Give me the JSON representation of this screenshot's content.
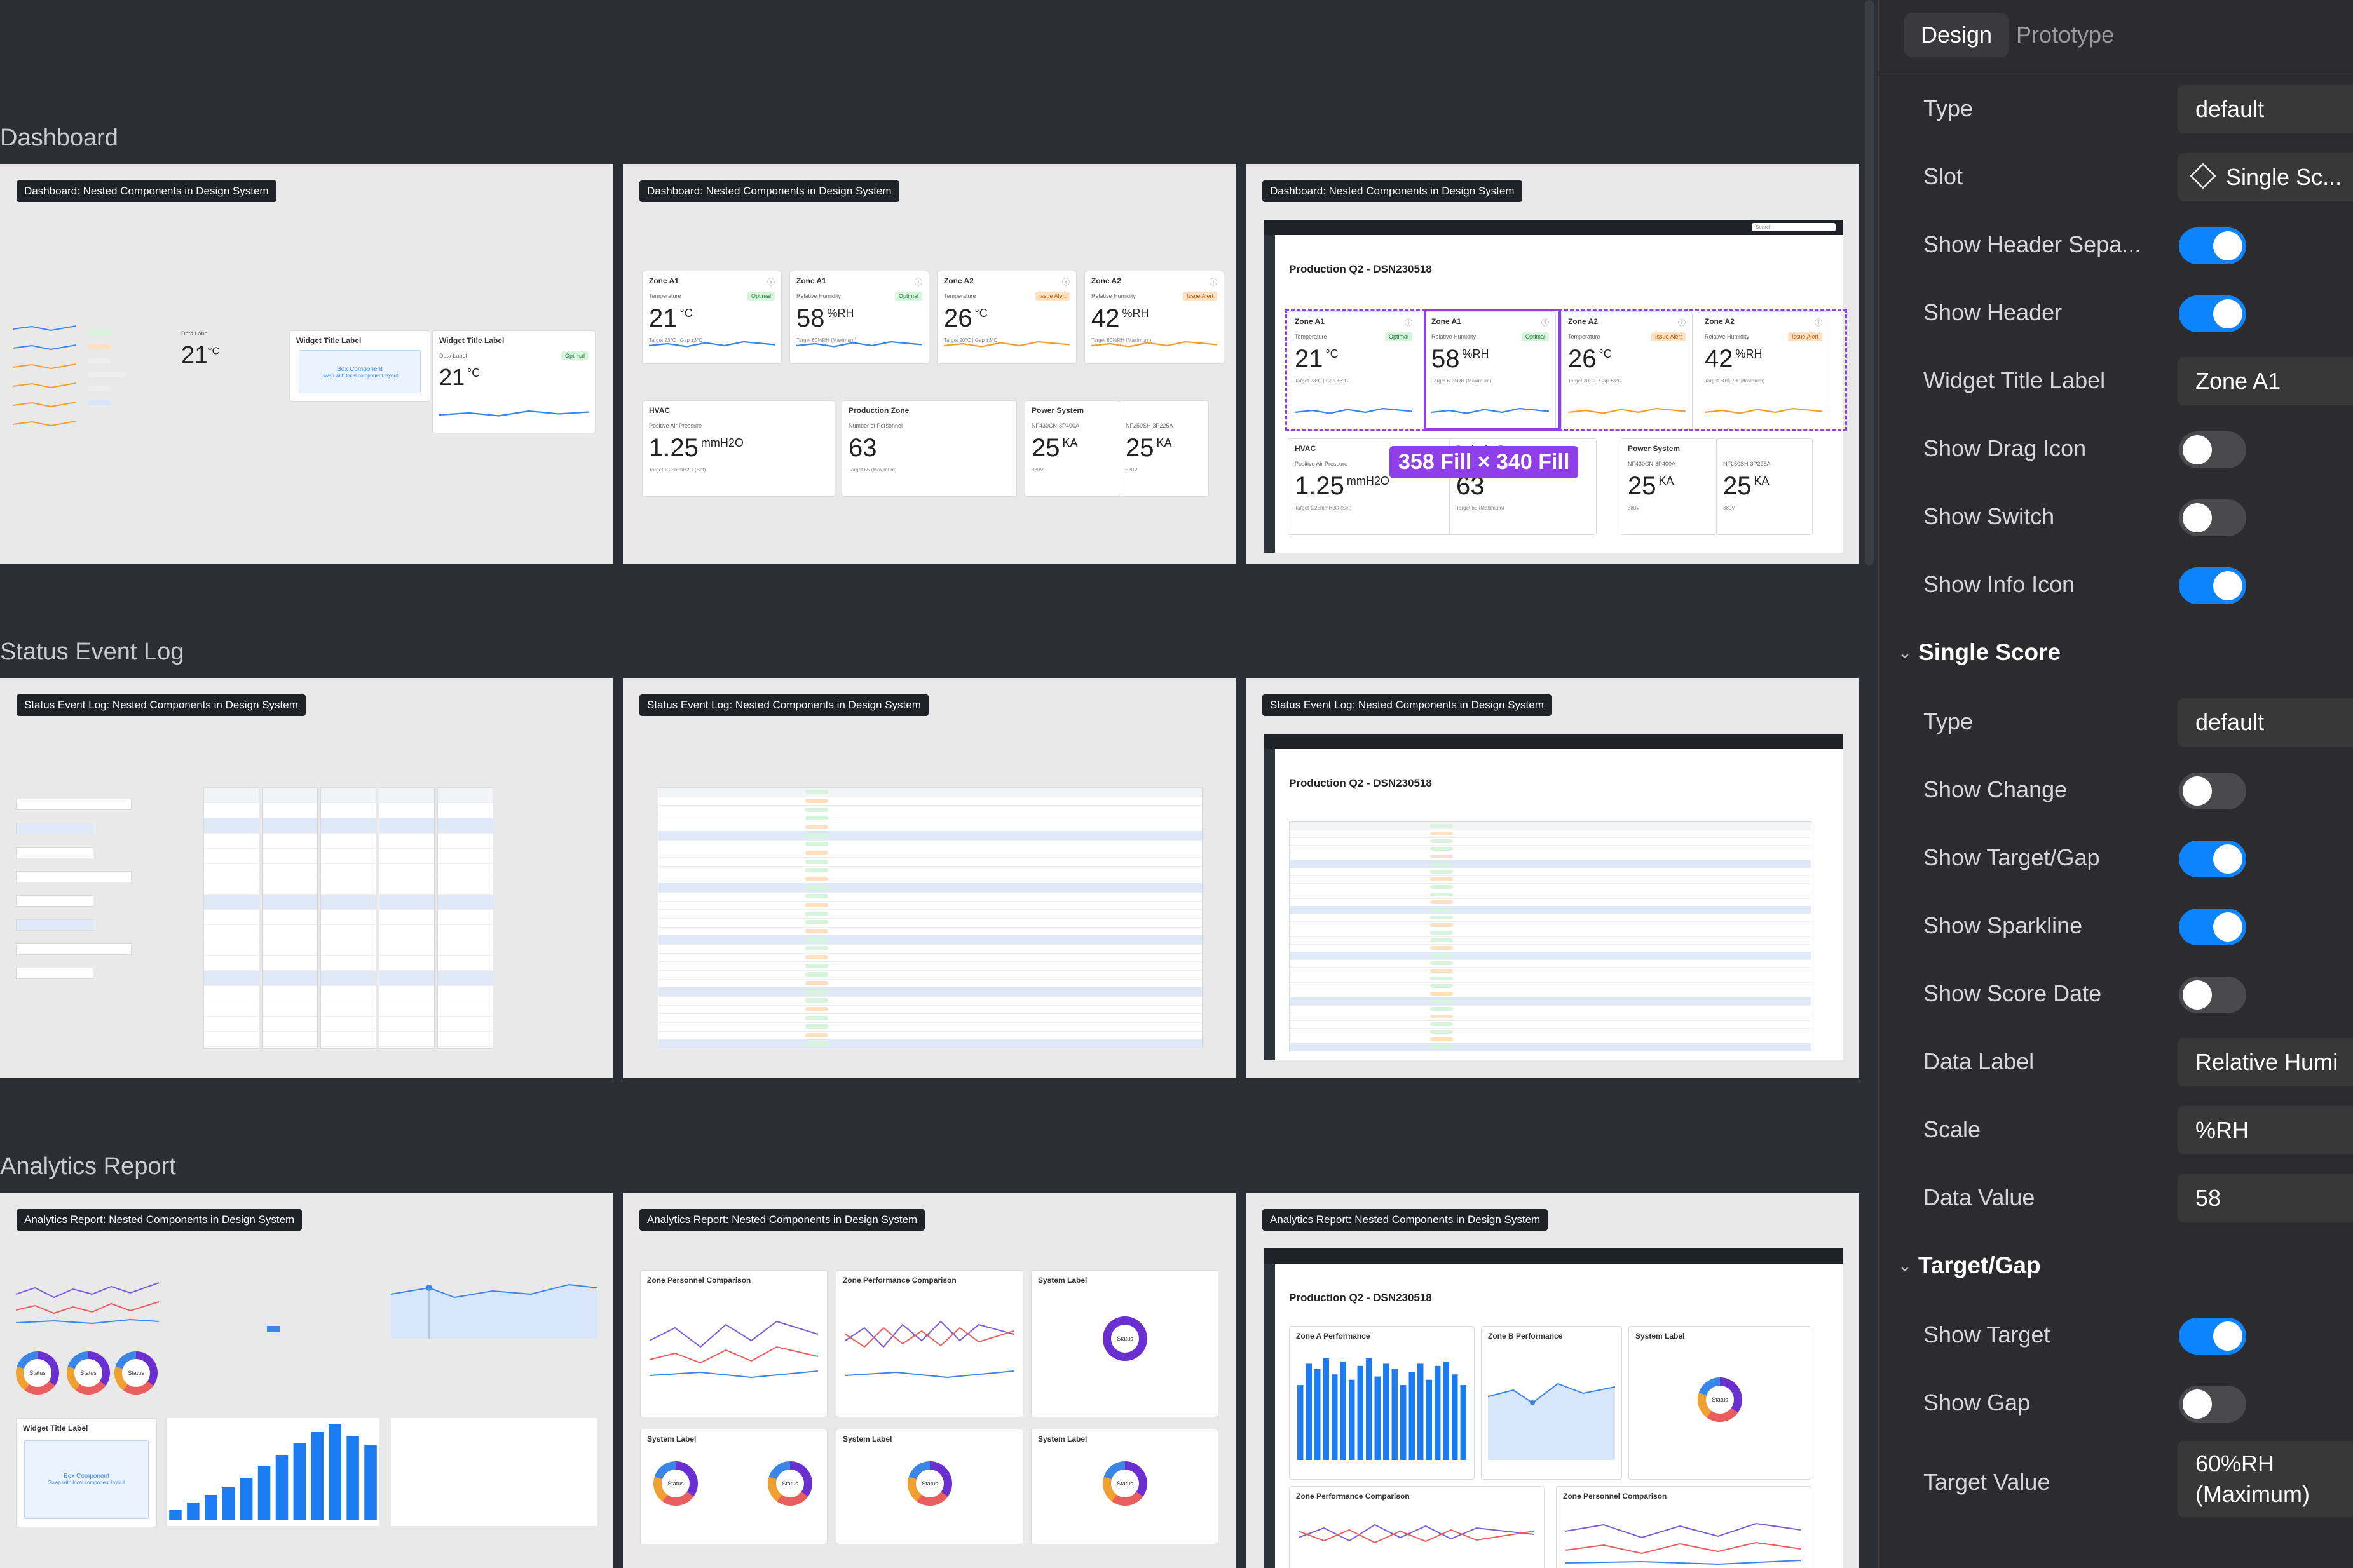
{
  "sections": [
    {
      "title": "Dashboard"
    },
    {
      "title": "Status Event Log"
    },
    {
      "title": "Analytics Report"
    }
  ],
  "frames": {
    "dashboard_tag": "Dashboard: Nested Components in Design System",
    "status_tag": "Status Event Log: Nested Components in Design System",
    "analytics_tag": "Analytics Report: Nested Components in Design System"
  },
  "dashboard": {
    "app_title": "Production Q2 - DSN230518",
    "search": "Search",
    "measure_label": "358 Fill × 340 Fill",
    "widget_title_label": "Widget Title Label",
    "data_label": "Data Label",
    "zones": [
      {
        "title": "Zone A1",
        "label": "Temperature",
        "value": "21",
        "unit": "°C",
        "badge": "Optimal",
        "gap": "Target 23°C | Gap ±3°C",
        "status": "ok"
      },
      {
        "title": "Zone A1",
        "label": "Relative Humidity",
        "value": "58",
        "unit": "%RH",
        "badge": "Optimal",
        "gap": "Target 60%RH (Maximum)",
        "status": "ok"
      },
      {
        "title": "Zone A2",
        "label": "Temperature",
        "value": "26",
        "unit": "°C",
        "badge": "Issue Alert",
        "gap": "Target 20°C | Gap ±3°C",
        "status": "warn"
      },
      {
        "title": "Zone A2",
        "label": "Relative Humidity",
        "value": "42",
        "unit": "%RH",
        "badge": "Issue Alert",
        "gap": "Target 60%RH (Maximum)",
        "status": "warn"
      }
    ],
    "bottom": [
      {
        "title": "HVAC",
        "label": "Positive Air Pressure",
        "value": "1.25",
        "unit": "mmH2O",
        "gap": "Target 1.25mmH2O (Set)"
      },
      {
        "title": "Production Zone",
        "label": "Number of Personnel",
        "value": "63",
        "unit": "",
        "gap": "Target 65 (Maximum)"
      },
      {
        "title": "Power System",
        "label": "NF430CN-3P400A",
        "value": "25",
        "unit": "KA",
        "gap": "380V"
      },
      {
        "title": "",
        "label": "NF250SH-3P225A",
        "value": "25",
        "unit": "KA",
        "gap": "380V"
      }
    ],
    "box_component": "Box Component",
    "box_sub": "Swap with local component layout"
  },
  "status_app_title": "Production Q2 - DSN230518",
  "analytics": {
    "app_title": "Production Q2 - DSN230518",
    "zone_personnel": "Zone Personnel Comparison",
    "zone_performance": "Zone Performance Comparison",
    "system_label": "System Label",
    "zone_a_perf": "Zone A Performance",
    "zone_b_perf": "Zone B Performance",
    "status": "Status",
    "widget_title_label": "Widget Title Label",
    "box_component": "Box Component",
    "box_sub": "Swap with local component layout"
  },
  "panel": {
    "tabs": [
      "Design",
      "Prototype"
    ],
    "type_label": "Type",
    "type_value": "default",
    "slot_label": "Slot",
    "slot_value": "Single Sc...",
    "show_header_sep": "Show Header Sepa...",
    "show_header": "Show Header",
    "widget_title_label": "Widget Title Label",
    "widget_title_value": "Zone A1",
    "show_drag_icon": "Show Drag Icon",
    "show_switch": "Show Switch",
    "show_info_icon": "Show Info Icon",
    "single_score": "Single Score",
    "type2_label": "Type",
    "type2_value": "default",
    "show_change": "Show Change",
    "show_target_gap": "Show Target/Gap",
    "show_sparkline": "Show Sparkline",
    "show_score_date": "Show Score Date",
    "data_label": "Data Label",
    "data_label_value": "Relative Humi",
    "scale": "Scale",
    "scale_value": "%RH",
    "data_value": "Data Value",
    "data_value_value": "58",
    "target_gap": "Target/Gap",
    "show_target": "Show Target",
    "show_gap": "Show Gap",
    "target_value": "Target Value",
    "target_value_line1": "60%RH",
    "target_value_line2": "(Maximum)",
    "toggles": {
      "show_header_sep": true,
      "show_header": true,
      "show_drag_icon": false,
      "show_switch": false,
      "show_info_icon": true,
      "show_change": false,
      "show_target_gap": true,
      "show_sparkline": true,
      "show_score_date": false,
      "show_target": true,
      "show_gap": false
    },
    "colors": {
      "toggle_on": "#0d84ff",
      "toggle_off": "#4a4a4c",
      "measure": "#8e3fe8"
    }
  }
}
